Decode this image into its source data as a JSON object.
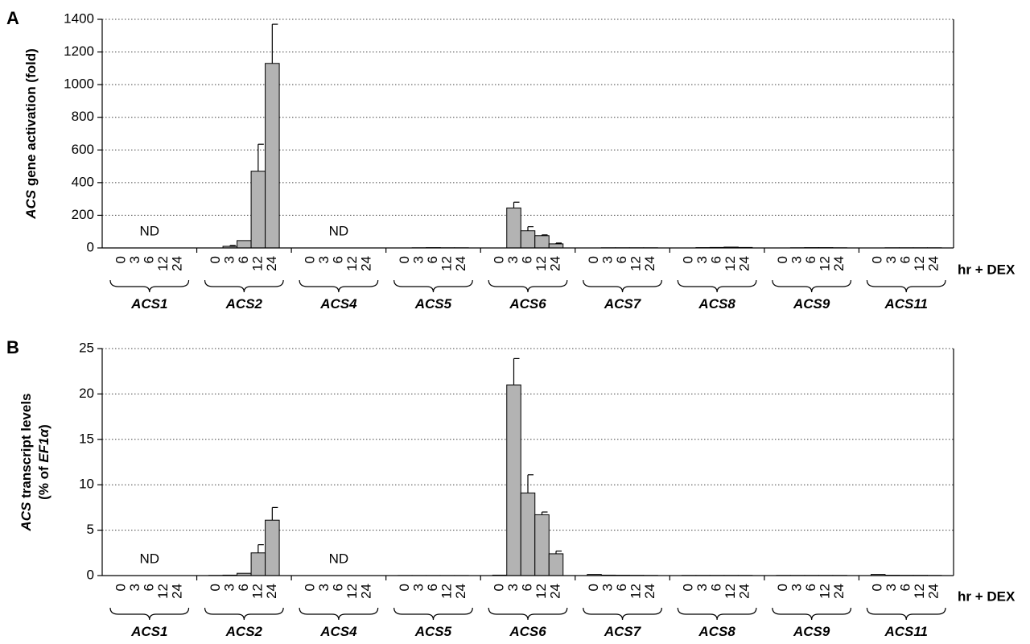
{
  "chart_data": [
    {
      "panel": "A",
      "type": "bar",
      "ylabel_italic": "ACS",
      "ylabel_rest": " gene activation (fold)",
      "ylabel_line2_pre": "",
      "ylabel_line2_ital": "",
      "ylabel_line2_post": "",
      "ylim": [
        0,
        1400
      ],
      "yticks": [
        0,
        200,
        400,
        600,
        800,
        1000,
        1200,
        1400
      ],
      "grid": true,
      "timepoints": [
        "0",
        "3",
        "6",
        "12",
        "24"
      ],
      "xlabel": "hr + DEX",
      "genes": [
        {
          "name": "ACS1",
          "nd": true,
          "values": [],
          "errors": []
        },
        {
          "name": "ACS2",
          "nd": false,
          "values": [
            0,
            10,
            45,
            470,
            1130
          ],
          "errors": [
            0,
            5,
            0,
            165,
            240
          ]
        },
        {
          "name": "ACS4",
          "nd": true,
          "values": [],
          "errors": []
        },
        {
          "name": "ACS5",
          "nd": false,
          "values": [
            0,
            1,
            2,
            1,
            1
          ],
          "errors": [
            0,
            0,
            0,
            0,
            0
          ]
        },
        {
          "name": "ACS6",
          "nd": false,
          "values": [
            0,
            245,
            105,
            75,
            25
          ],
          "errors": [
            0,
            35,
            25,
            5,
            5
          ]
        },
        {
          "name": "ACS7",
          "nd": false,
          "values": [
            0,
            1,
            1,
            1,
            1
          ],
          "errors": [
            0,
            0,
            0,
            0,
            0
          ]
        },
        {
          "name": "ACS8",
          "nd": false,
          "values": [
            0,
            2,
            3,
            5,
            3
          ],
          "errors": [
            0,
            0,
            0,
            0,
            0
          ]
        },
        {
          "name": "ACS9",
          "nd": false,
          "values": [
            0,
            1,
            2,
            2,
            1
          ],
          "errors": [
            0,
            0,
            0,
            0,
            0
          ]
        },
        {
          "name": "ACS11",
          "nd": false,
          "values": [
            0,
            1,
            1,
            1,
            1
          ],
          "errors": [
            0,
            0,
            0,
            0,
            0
          ]
        }
      ],
      "nd_label": "ND"
    },
    {
      "panel": "B",
      "type": "bar",
      "ylabel_italic": "ACS",
      "ylabel_rest": " transcript levels",
      "ylabel_line2_pre": "(% of ",
      "ylabel_line2_ital": "EF1α",
      "ylabel_line2_post": ")",
      "ylim": [
        0,
        25
      ],
      "yticks": [
        0,
        5,
        10,
        15,
        20,
        25
      ],
      "grid": true,
      "timepoints": [
        "0",
        "3",
        "6",
        "12",
        "24"
      ],
      "xlabel": "hr + DEX",
      "genes": [
        {
          "name": "ACS1",
          "nd": true,
          "values": [],
          "errors": []
        },
        {
          "name": "ACS2",
          "nd": false,
          "values": [
            0.02,
            0.05,
            0.25,
            2.5,
            6.1
          ],
          "errors": [
            0,
            0,
            0,
            0.9,
            1.4
          ]
        },
        {
          "name": "ACS4",
          "nd": true,
          "values": [],
          "errors": []
        },
        {
          "name": "ACS5",
          "nd": false,
          "values": [
            0.01,
            0.01,
            0.01,
            0.01,
            0.01
          ],
          "errors": [
            0,
            0,
            0,
            0,
            0
          ]
        },
        {
          "name": "ACS6",
          "nd": false,
          "values": [
            0.05,
            21.0,
            9.1,
            6.7,
            2.4
          ],
          "errors": [
            0,
            2.9,
            2.0,
            0.3,
            0.3
          ]
        },
        {
          "name": "ACS7",
          "nd": false,
          "values": [
            0.12,
            0.05,
            0.04,
            0.03,
            0.02
          ],
          "errors": [
            0,
            0,
            0,
            0,
            0
          ]
        },
        {
          "name": "ACS8",
          "nd": false,
          "values": [
            0.02,
            0.02,
            0.02,
            0.02,
            0.02
          ],
          "errors": [
            0,
            0,
            0,
            0,
            0
          ]
        },
        {
          "name": "ACS9",
          "nd": false,
          "values": [
            0.02,
            0.02,
            0.02,
            0.02,
            0.02
          ],
          "errors": [
            0,
            0,
            0,
            0,
            0
          ]
        },
        {
          "name": "ACS11",
          "nd": false,
          "values": [
            0.12,
            0.04,
            0.03,
            0.03,
            0.02
          ],
          "errors": [
            0,
            0,
            0,
            0,
            0
          ]
        }
      ],
      "nd_label": "ND"
    }
  ]
}
